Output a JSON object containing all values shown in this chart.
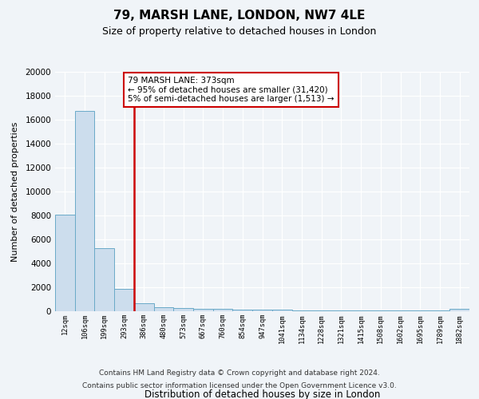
{
  "title1": "79, MARSH LANE, LONDON, NW7 4LE",
  "title2": "Size of property relative to detached houses in London",
  "xlabel": "Distribution of detached houses by size in London",
  "ylabel": "Number of detached properties",
  "bar_color": "#ccdded",
  "bar_edge_color": "#6aaac8",
  "vline_color": "#cc0000",
  "vline_x_index": 3,
  "annotation_text": "79 MARSH LANE: 373sqm\n← 95% of detached houses are smaller (31,420)\n5% of semi-detached houses are larger (1,513) →",
  "annotation_box_color": "white",
  "annotation_box_edge": "#cc0000",
  "categories": [
    "12sqm",
    "106sqm",
    "199sqm",
    "293sqm",
    "386sqm",
    "480sqm",
    "573sqm",
    "667sqm",
    "760sqm",
    "854sqm",
    "947sqm",
    "1041sqm",
    "1134sqm",
    "1228sqm",
    "1321sqm",
    "1415sqm",
    "1508sqm",
    "1602sqm",
    "1695sqm",
    "1789sqm",
    "1882sqm"
  ],
  "values": [
    8100,
    16700,
    5300,
    1850,
    700,
    350,
    270,
    200,
    170,
    150,
    130,
    110,
    100,
    90,
    80,
    70,
    60,
    55,
    50,
    45,
    170
  ],
  "ylim": [
    0,
    20000
  ],
  "yticks": [
    0,
    2000,
    4000,
    6000,
    8000,
    10000,
    12000,
    14000,
    16000,
    18000,
    20000
  ],
  "footer1": "Contains HM Land Registry data © Crown copyright and database right 2024.",
  "footer2": "Contains public sector information licensed under the Open Government Licence v3.0.",
  "background_color": "#f0f4f8",
  "plot_bg_color": "#f0f4f8",
  "grid_color": "white"
}
